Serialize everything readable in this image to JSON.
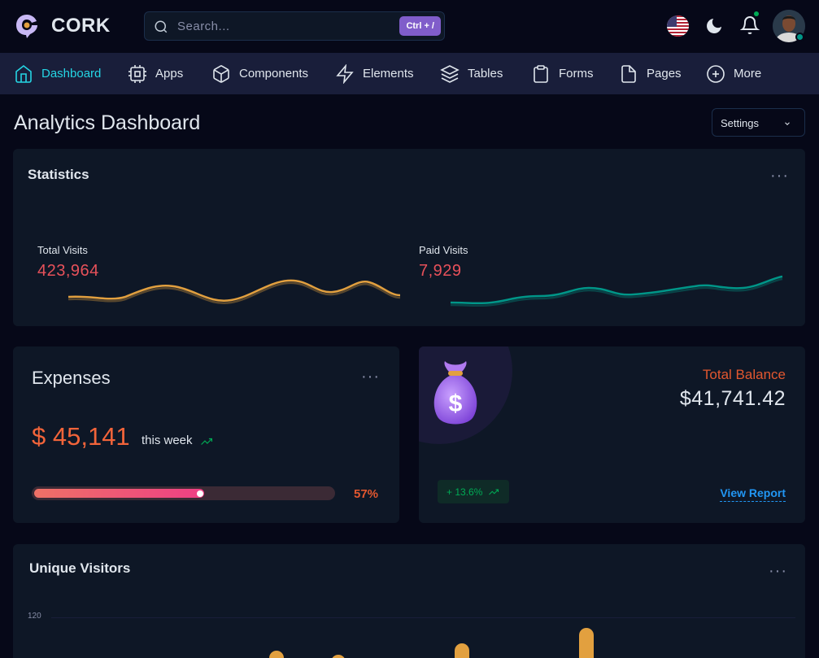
{
  "app": {
    "brand": "CORK"
  },
  "search": {
    "placeholder": "Search...",
    "shortcut": "Ctrl + /"
  },
  "nav": {
    "items": [
      {
        "label": "Dashboard",
        "icon": "home-icon",
        "active": true
      },
      {
        "label": "Apps",
        "icon": "cpu-icon"
      },
      {
        "label": "Components",
        "icon": "box-icon"
      },
      {
        "label": "Elements",
        "icon": "zap-icon"
      },
      {
        "label": "Tables",
        "icon": "layers-icon"
      },
      {
        "label": "Forms",
        "icon": "clipboard-icon"
      },
      {
        "label": "Pages",
        "icon": "file-icon"
      },
      {
        "label": "More",
        "icon": "plus-circle-icon"
      }
    ]
  },
  "page": {
    "title": "Analytics Dashboard",
    "settings_label": "Settings"
  },
  "statistics": {
    "title": "Statistics",
    "total_visits": {
      "label": "Total Visits",
      "value": "423,964",
      "color": "#e2a03f"
    },
    "paid_visits": {
      "label": "Paid Visits",
      "value": "7,929",
      "color": "#009688"
    }
  },
  "expenses": {
    "title": "Expenses",
    "amount": "$ 45,141",
    "period": "this week",
    "progress_percent": 57,
    "progress_label": "57%"
  },
  "balance": {
    "label": "Total Balance",
    "amount": "$41,741.42",
    "growth": "+ 13.6%",
    "link": "View Report"
  },
  "unique_visitors": {
    "title": "Unique Visitors",
    "y_tick_top": "120"
  },
  "colors": {
    "accent": "#4361ee",
    "active_nav_text": "#25d5e4",
    "danger": "#e7515a",
    "warning": "#e2a03f",
    "success": "#00ab55",
    "info": "#2196f3",
    "purple": "#805dca"
  }
}
